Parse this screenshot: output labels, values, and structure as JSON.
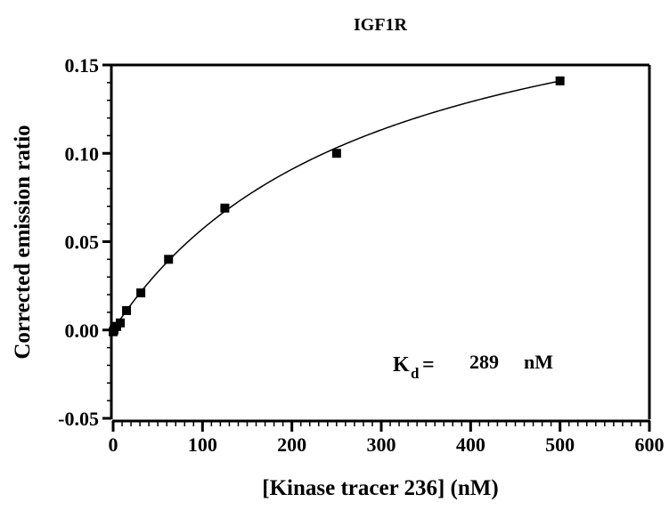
{
  "chart_data": {
    "type": "scatter",
    "title": "IGF1R",
    "xlabel": "[Kinase tracer 236] (nM)",
    "ylabel": "Corrected emission ratio",
    "xlim": [
      0,
      600
    ],
    "ylim": [
      -0.05,
      0.15
    ],
    "x_ticks": [
      0,
      100,
      200,
      300,
      400,
      500,
      600
    ],
    "y_ticks": [
      -0.05,
      0.0,
      0.05,
      0.1,
      0.15
    ],
    "x_tick_labels": [
      "0",
      "100",
      "200",
      "300",
      "400",
      "500",
      "600"
    ],
    "y_tick_labels": [
      "-0.05",
      "0.00",
      "0.05",
      "0.10",
      "0.15"
    ],
    "grid": false,
    "series": [
      {
        "marker": "square",
        "color": "#000000",
        "x": [
          0,
          1,
          2,
          4,
          8,
          15,
          31,
          62,
          125,
          250,
          500
        ],
        "y": [
          -0.001,
          0.0,
          0.002,
          0.002,
          0.004,
          0.011,
          0.021,
          0.04,
          0.069,
          0.1,
          0.141
        ]
      }
    ],
    "fit": {
      "model": "one-site binding",
      "bmax": 0.2224,
      "kd": 289,
      "color": "#000000"
    },
    "annotation": {
      "symbol": "K",
      "subscript": "d",
      "equals": "=",
      "value": "289",
      "unit": "nM"
    }
  }
}
